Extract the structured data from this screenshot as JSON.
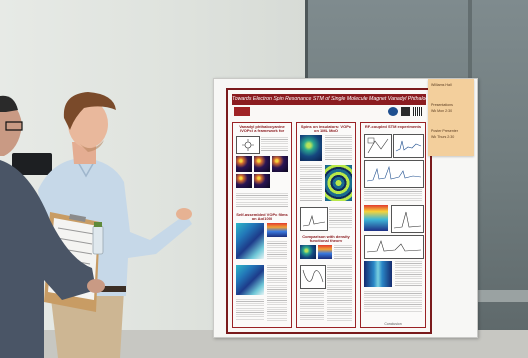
{
  "poster": {
    "title": "Towards Electron Spin Resonance STM of Single Molecule Magnet Vanadyl Phthalocyanine",
    "sections": {
      "col1_top": "Vanadyl phthalocyanine (VOPc) a framework for nanoscale spins on surfaces",
      "col1_bottom": "Self-assembled VOPc films on Ag(100)",
      "col2_top": "Spins on insulators: VOPc on 1ML MgO",
      "col2_bottom": "Comparison with density functional theory",
      "col3_top": "RF-coupled STM experiments",
      "footer": "Conclusion"
    }
  },
  "sticky_note": {
    "lines": [
      "Williams Hall",
      "Presentations",
      "Wk Mon   2:30",
      "Poster Presenter",
      "Wk Thurs  2:30"
    ]
  },
  "colors": {
    "poster_accent": "#8b1c20",
    "sticky_note": "#f3cf9c",
    "wall_panel": "#6f7b7d"
  }
}
